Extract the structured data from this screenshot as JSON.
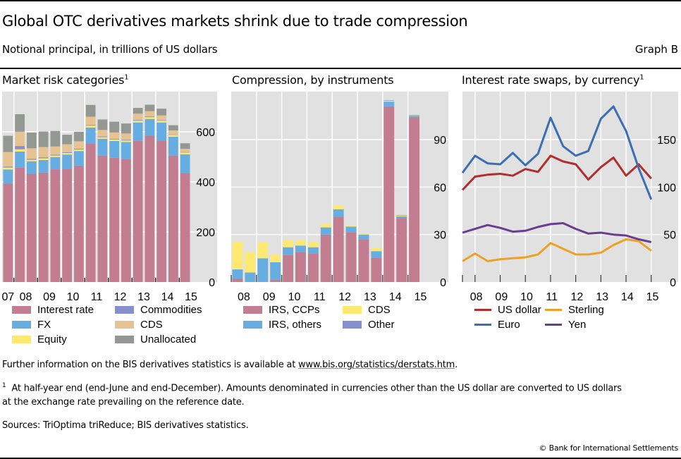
{
  "header": {
    "title": "Global OTC derivatives markets shrink due to trade compression",
    "subtitle": "Notional principal, in trillions of US dollars",
    "graph_label": "Graph B"
  },
  "panels": [
    {
      "title": "Market risk categories",
      "footnote_mark": "1"
    },
    {
      "title": "Compression, by instruments",
      "footnote_mark": ""
    },
    {
      "title": "Interest rate swaps, by currency",
      "footnote_mark": "1"
    }
  ],
  "legends": {
    "left": [
      {
        "label": "Interest rate",
        "color": "#c27e90"
      },
      {
        "label": "Commodities",
        "color": "#8590cc"
      },
      {
        "label": "FX",
        "color": "#66ade2"
      },
      {
        "label": "CDS",
        "color": "#e5c393"
      },
      {
        "label": "Equity",
        "color": "#fde96f"
      },
      {
        "label": "Unallocated",
        "color": "#939992"
      }
    ],
    "middle": [
      {
        "label": "IRS, CCPs",
        "color": "#c27e90"
      },
      {
        "label": "CDS",
        "color": "#fde96f"
      },
      {
        "label": "IRS, others",
        "color": "#66ade2"
      },
      {
        "label": "Other",
        "color": "#8590cc"
      }
    ],
    "right": [
      {
        "label": "US dollar",
        "color": "#b22e2e"
      },
      {
        "label": "Sterling",
        "color": "#eda125"
      },
      {
        "label": "Euro",
        "color": "#3c6eb4"
      },
      {
        "label": "Yen",
        "color": "#6a3d91"
      }
    ]
  },
  "footer": {
    "info_prefix": "Further information on the BIS derivatives statistics is available at ",
    "info_link": "www.bis.org/statistics/derstats.htm",
    "info_suffix": ".",
    "footnote_mark": "1",
    "footnote_line1": "At half-year end (end-June and end-December). Amounts denominated in currencies other than the US dollar are converted to US dollars",
    "footnote_line2": "at the exchange rate prevailing on the reference date.",
    "sources": "Sources: TriOptima triReduce; BIS derivatives statistics.",
    "copyright": "© Bank for International Settlements"
  },
  "chart_data": [
    {
      "type": "bar",
      "stacked": true,
      "title": "Market risk categories",
      "periods": [
        "2007H2",
        "2008H1",
        "2008H2",
        "2009H1",
        "2009H2",
        "2010H1",
        "2010H2",
        "2011H1",
        "2011H2",
        "2012H1",
        "2012H2",
        "2013H1",
        "2013H2",
        "2014H1",
        "2014H2",
        "2015H1"
      ],
      "x_tick_labels": [
        "07",
        "08",
        "09",
        "10",
        "11",
        "12",
        "13",
        "14",
        "15"
      ],
      "ylim": [
        0,
        760
      ],
      "yticks": [
        0,
        200,
        400,
        600
      ],
      "y_axis_side": "right",
      "grid": true,
      "series": [
        {
          "name": "Interest rate",
          "color": "#c27e90",
          "values": [
            393,
            458,
            432,
            437,
            450,
            452,
            465,
            554,
            505,
            496,
            492,
            564,
            584,
            563,
            505,
            435
          ]
        },
        {
          "name": "FX",
          "color": "#66ade2",
          "values": [
            56,
            63,
            50,
            50,
            49,
            57,
            58,
            63,
            67,
            67,
            67,
            73,
            67,
            74,
            75,
            75
          ]
        },
        {
          "name": "Equity",
          "color": "#fde96f",
          "values": [
            8,
            9,
            6,
            7,
            6,
            6,
            6,
            7,
            6,
            6,
            6,
            7,
            7,
            7,
            7,
            7
          ]
        },
        {
          "name": "Commodities",
          "color": "#8590cc",
          "values": [
            4,
            13,
            4,
            4,
            3,
            3,
            3,
            3,
            3,
            3,
            3,
            3,
            3,
            2,
            2,
            2
          ]
        },
        {
          "name": "CDS",
          "color": "#e5c393",
          "values": [
            58,
            57,
            42,
            41,
            33,
            32,
            30,
            33,
            26,
            25,
            25,
            25,
            21,
            19,
            16,
            13
          ]
        },
        {
          "name": "Unallocated",
          "color": "#939992",
          "values": [
            65,
            70,
            63,
            62,
            62,
            38,
            38,
            47,
            42,
            43,
            40,
            23,
            26,
            27,
            21,
            22
          ]
        }
      ]
    },
    {
      "type": "bar",
      "stacked": true,
      "title": "Compression, by instruments",
      "periods": [
        "2008H1",
        "2008H2",
        "2009H1",
        "2009H2",
        "2010H1",
        "2010H2",
        "2011H1",
        "2011H2",
        "2012H1",
        "2012H2",
        "2013H1",
        "2013H2",
        "2014H1",
        "2014H2",
        "2015H1"
      ],
      "x_tick_labels": [
        "08",
        "09",
        "10",
        "11",
        "12",
        "13",
        "14",
        "15"
      ],
      "ylim": [
        0,
        118
      ],
      "yticks": [
        0,
        30,
        60,
        90
      ],
      "y_axis_side": "right",
      "grid": true,
      "series": [
        {
          "name": "IRS, CCPs",
          "color": "#c27e90",
          "values": [
            2,
            0,
            0,
            1.5,
            17,
            19,
            18,
            30,
            41,
            31.5,
            27,
            15.5,
            111,
            40.5,
            104
          ]
        },
        {
          "name": "IRS, others",
          "color": "#66ade2",
          "values": [
            6,
            6,
            15,
            11,
            5,
            4,
            4,
            4.5,
            5,
            3.5,
            3,
            4,
            3,
            1,
            1
          ]
        },
        {
          "name": "CDS",
          "color": "#fde96f",
          "values": [
            17.5,
            13,
            10,
            5,
            4.5,
            3.5,
            3.5,
            2.5,
            2.5,
            1,
            0.5,
            2,
            0.5,
            0.5,
            0.3
          ]
        },
        {
          "name": "Other",
          "color": "#8590cc",
          "values": [
            0,
            0,
            0,
            0,
            0,
            0,
            0,
            0,
            0,
            0,
            0,
            0,
            0.3,
            0.3,
            0.3
          ]
        }
      ]
    },
    {
      "type": "line",
      "title": "Interest rate swaps, by currency",
      "periods": [
        "2007H2",
        "2008H1",
        "2008H2",
        "2009H1",
        "2009H2",
        "2010H1",
        "2010H2",
        "2011H1",
        "2011H2",
        "2012H1",
        "2012H2",
        "2013H1",
        "2013H2",
        "2014H1",
        "2014H2",
        "2015H1"
      ],
      "x_tick_labels": [
        "08",
        "09",
        "10",
        "11",
        "12",
        "13",
        "14",
        "15"
      ],
      "ylim": [
        0,
        200
      ],
      "yticks": [
        0,
        50,
        100,
        150
      ],
      "y_axis_side": "right",
      "grid": true,
      "series": [
        {
          "name": "US dollar",
          "color": "#b22e2e",
          "values": [
            97,
            111,
            113,
            114,
            112,
            119,
            116,
            133,
            127,
            124,
            108,
            121,
            131,
            112,
            124,
            109
          ]
        },
        {
          "name": "Euro",
          "color": "#3c6eb4",
          "values": [
            115,
            133,
            125,
            124,
            136,
            123,
            135,
            173,
            143,
            133,
            138,
            172,
            185,
            159,
            120,
            87
          ]
        },
        {
          "name": "Sterling",
          "color": "#eda125",
          "values": [
            22,
            30,
            22,
            24,
            25,
            26,
            29,
            41,
            35,
            29,
            29,
            31,
            39,
            45,
            43,
            33
          ]
        },
        {
          "name": "Yen",
          "color": "#6a3d91",
          "values": [
            52,
            56,
            60,
            57,
            53,
            54,
            58,
            61,
            62,
            56,
            51,
            52,
            50,
            49,
            45,
            42
          ]
        }
      ]
    }
  ]
}
